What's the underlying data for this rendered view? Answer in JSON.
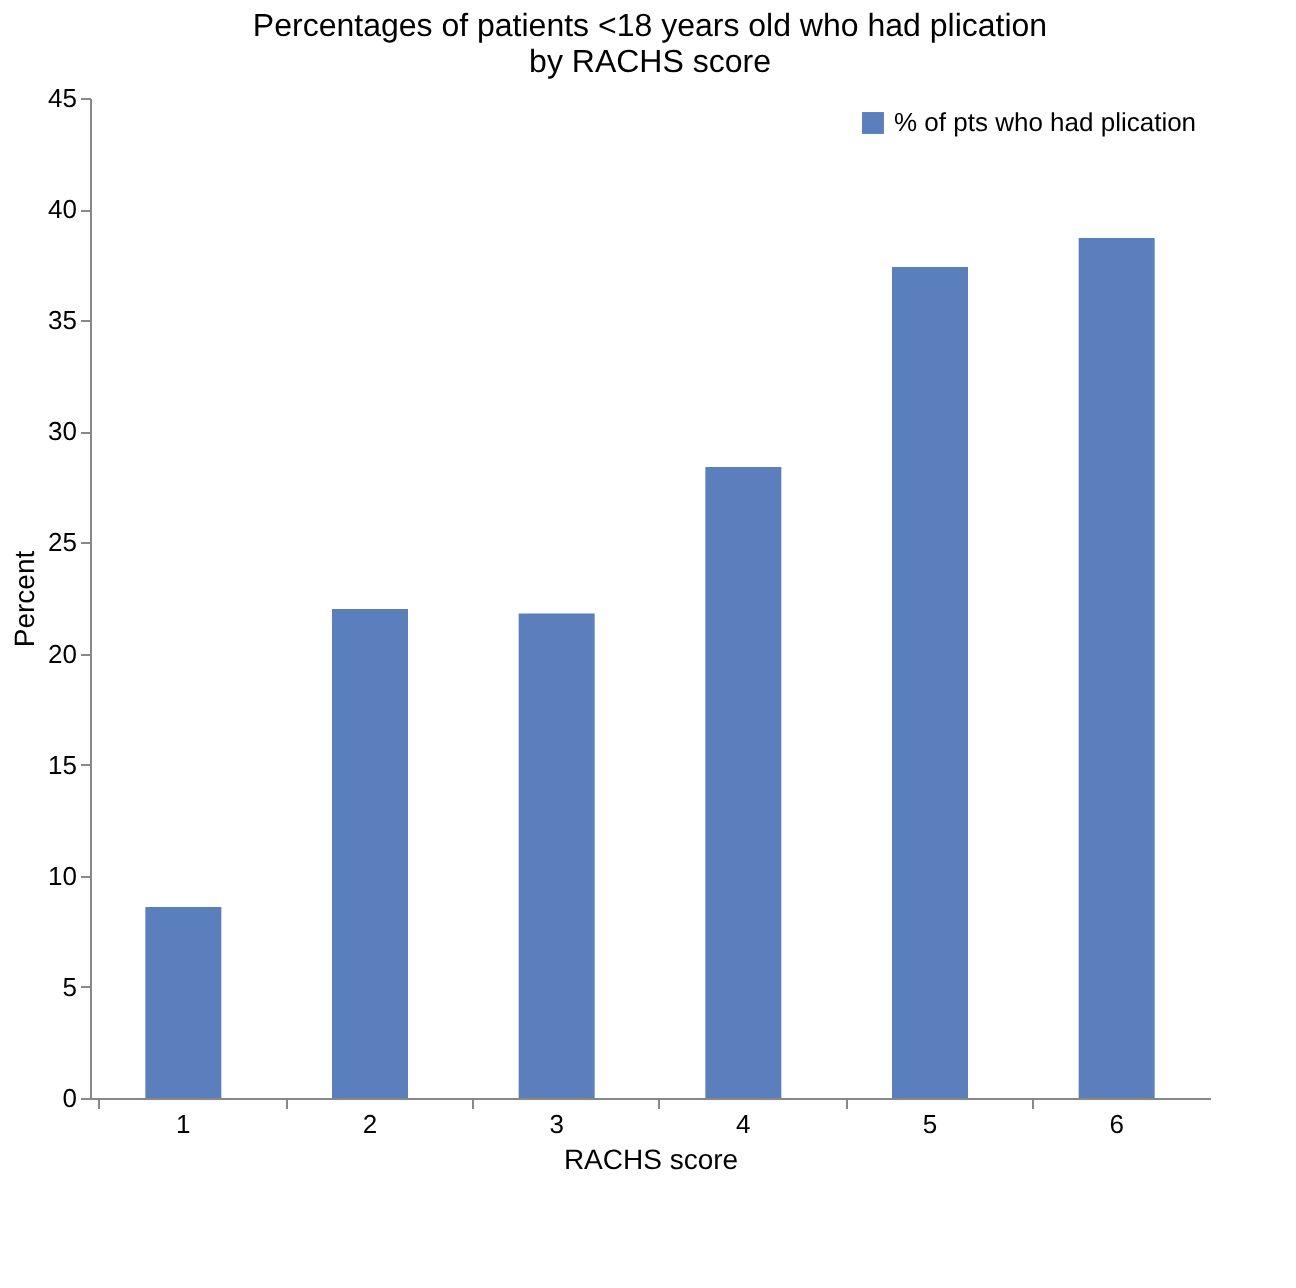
{
  "chart_data": {
    "type": "bar",
    "title": [
      "Percentages of patients <18 years old who had plication",
      "by RACHS score"
    ],
    "xlabel": "RACHS score",
    "ylabel": "Percent",
    "categories": [
      "1",
      "2",
      "3",
      "4",
      "5",
      "6"
    ],
    "series": [
      {
        "name": "% of pts who had plication",
        "color": "#5b7fbd",
        "values": [
          8.6,
          22.0,
          21.8,
          28.4,
          37.4,
          38.7
        ]
      }
    ],
    "ylim": [
      0,
      45
    ],
    "yticks": [
      0,
      5,
      10,
      15,
      20,
      25,
      30,
      35,
      40,
      45
    ],
    "grid": false,
    "legend": "top right"
  }
}
